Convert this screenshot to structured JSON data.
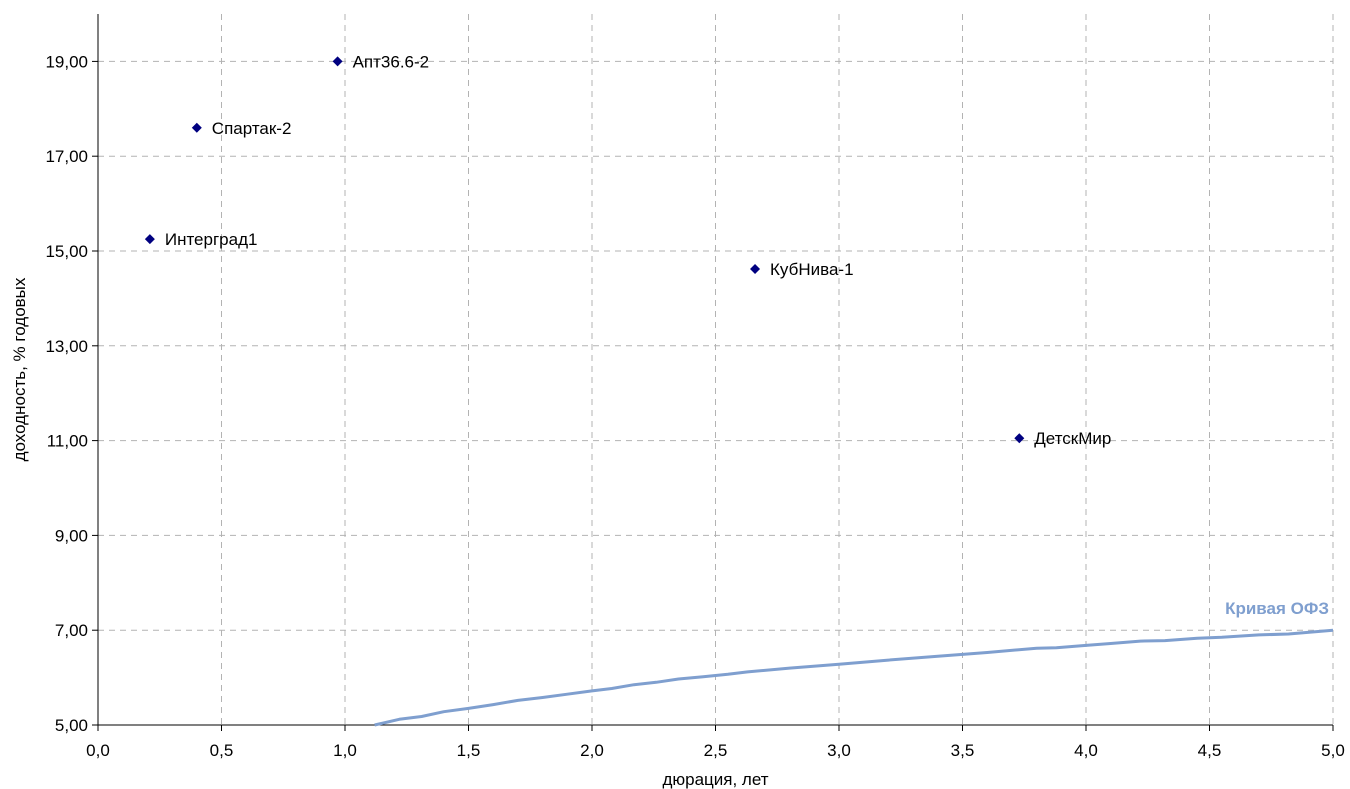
{
  "chart_data": {
    "type": "scatter",
    "title": "",
    "xlabel": "дюрация, лет",
    "ylabel": "доходность, % годовых",
    "xlim": [
      0,
      5
    ],
    "ylim": [
      5,
      20
    ],
    "x_ticks": [
      "0,0",
      "0,5",
      "1,0",
      "1,5",
      "2,0",
      "2,5",
      "3,0",
      "3,5",
      "4,0",
      "4,5",
      "5,0"
    ],
    "y_ticks": [
      "5,00",
      "7,00",
      "9,00",
      "11,00",
      "13,00",
      "15,00",
      "17,00",
      "19,00"
    ],
    "grid": true,
    "series": [
      {
        "type": "scatter",
        "color": "#000080",
        "marker": "diamond",
        "points": [
          {
            "label": "Апт36.6-2",
            "x": 0.97,
            "y": 19.0
          },
          {
            "label": "Спартак-2",
            "x": 0.4,
            "y": 17.6
          },
          {
            "label": "Интерград1",
            "x": 0.21,
            "y": 15.25
          },
          {
            "label": "КубНива-1",
            "x": 2.66,
            "y": 14.62
          },
          {
            "label": "ДетскМир",
            "x": 3.73,
            "y": 11.05
          }
        ]
      },
      {
        "type": "line",
        "name": "Кривая ОФЗ",
        "color": "#7f9fcf",
        "x": [
          1.12,
          1.22,
          1.31,
          1.4,
          1.5,
          1.6,
          1.7,
          1.8,
          1.9,
          2.0,
          2.08,
          2.17,
          2.26,
          2.35,
          2.45,
          2.55,
          2.63,
          2.8,
          3.0,
          3.2,
          3.4,
          3.6,
          3.8,
          3.88,
          4.0,
          4.1,
          4.22,
          4.32,
          4.45,
          4.55,
          4.7,
          4.82,
          5.0
        ],
        "y": [
          5.0,
          5.12,
          5.18,
          5.28,
          5.35,
          5.43,
          5.52,
          5.58,
          5.65,
          5.72,
          5.77,
          5.85,
          5.9,
          5.97,
          6.02,
          6.07,
          6.12,
          6.2,
          6.28,
          6.37,
          6.45,
          6.53,
          6.62,
          6.63,
          6.68,
          6.72,
          6.77,
          6.78,
          6.83,
          6.85,
          6.9,
          6.92,
          7.0
        ]
      }
    ]
  }
}
